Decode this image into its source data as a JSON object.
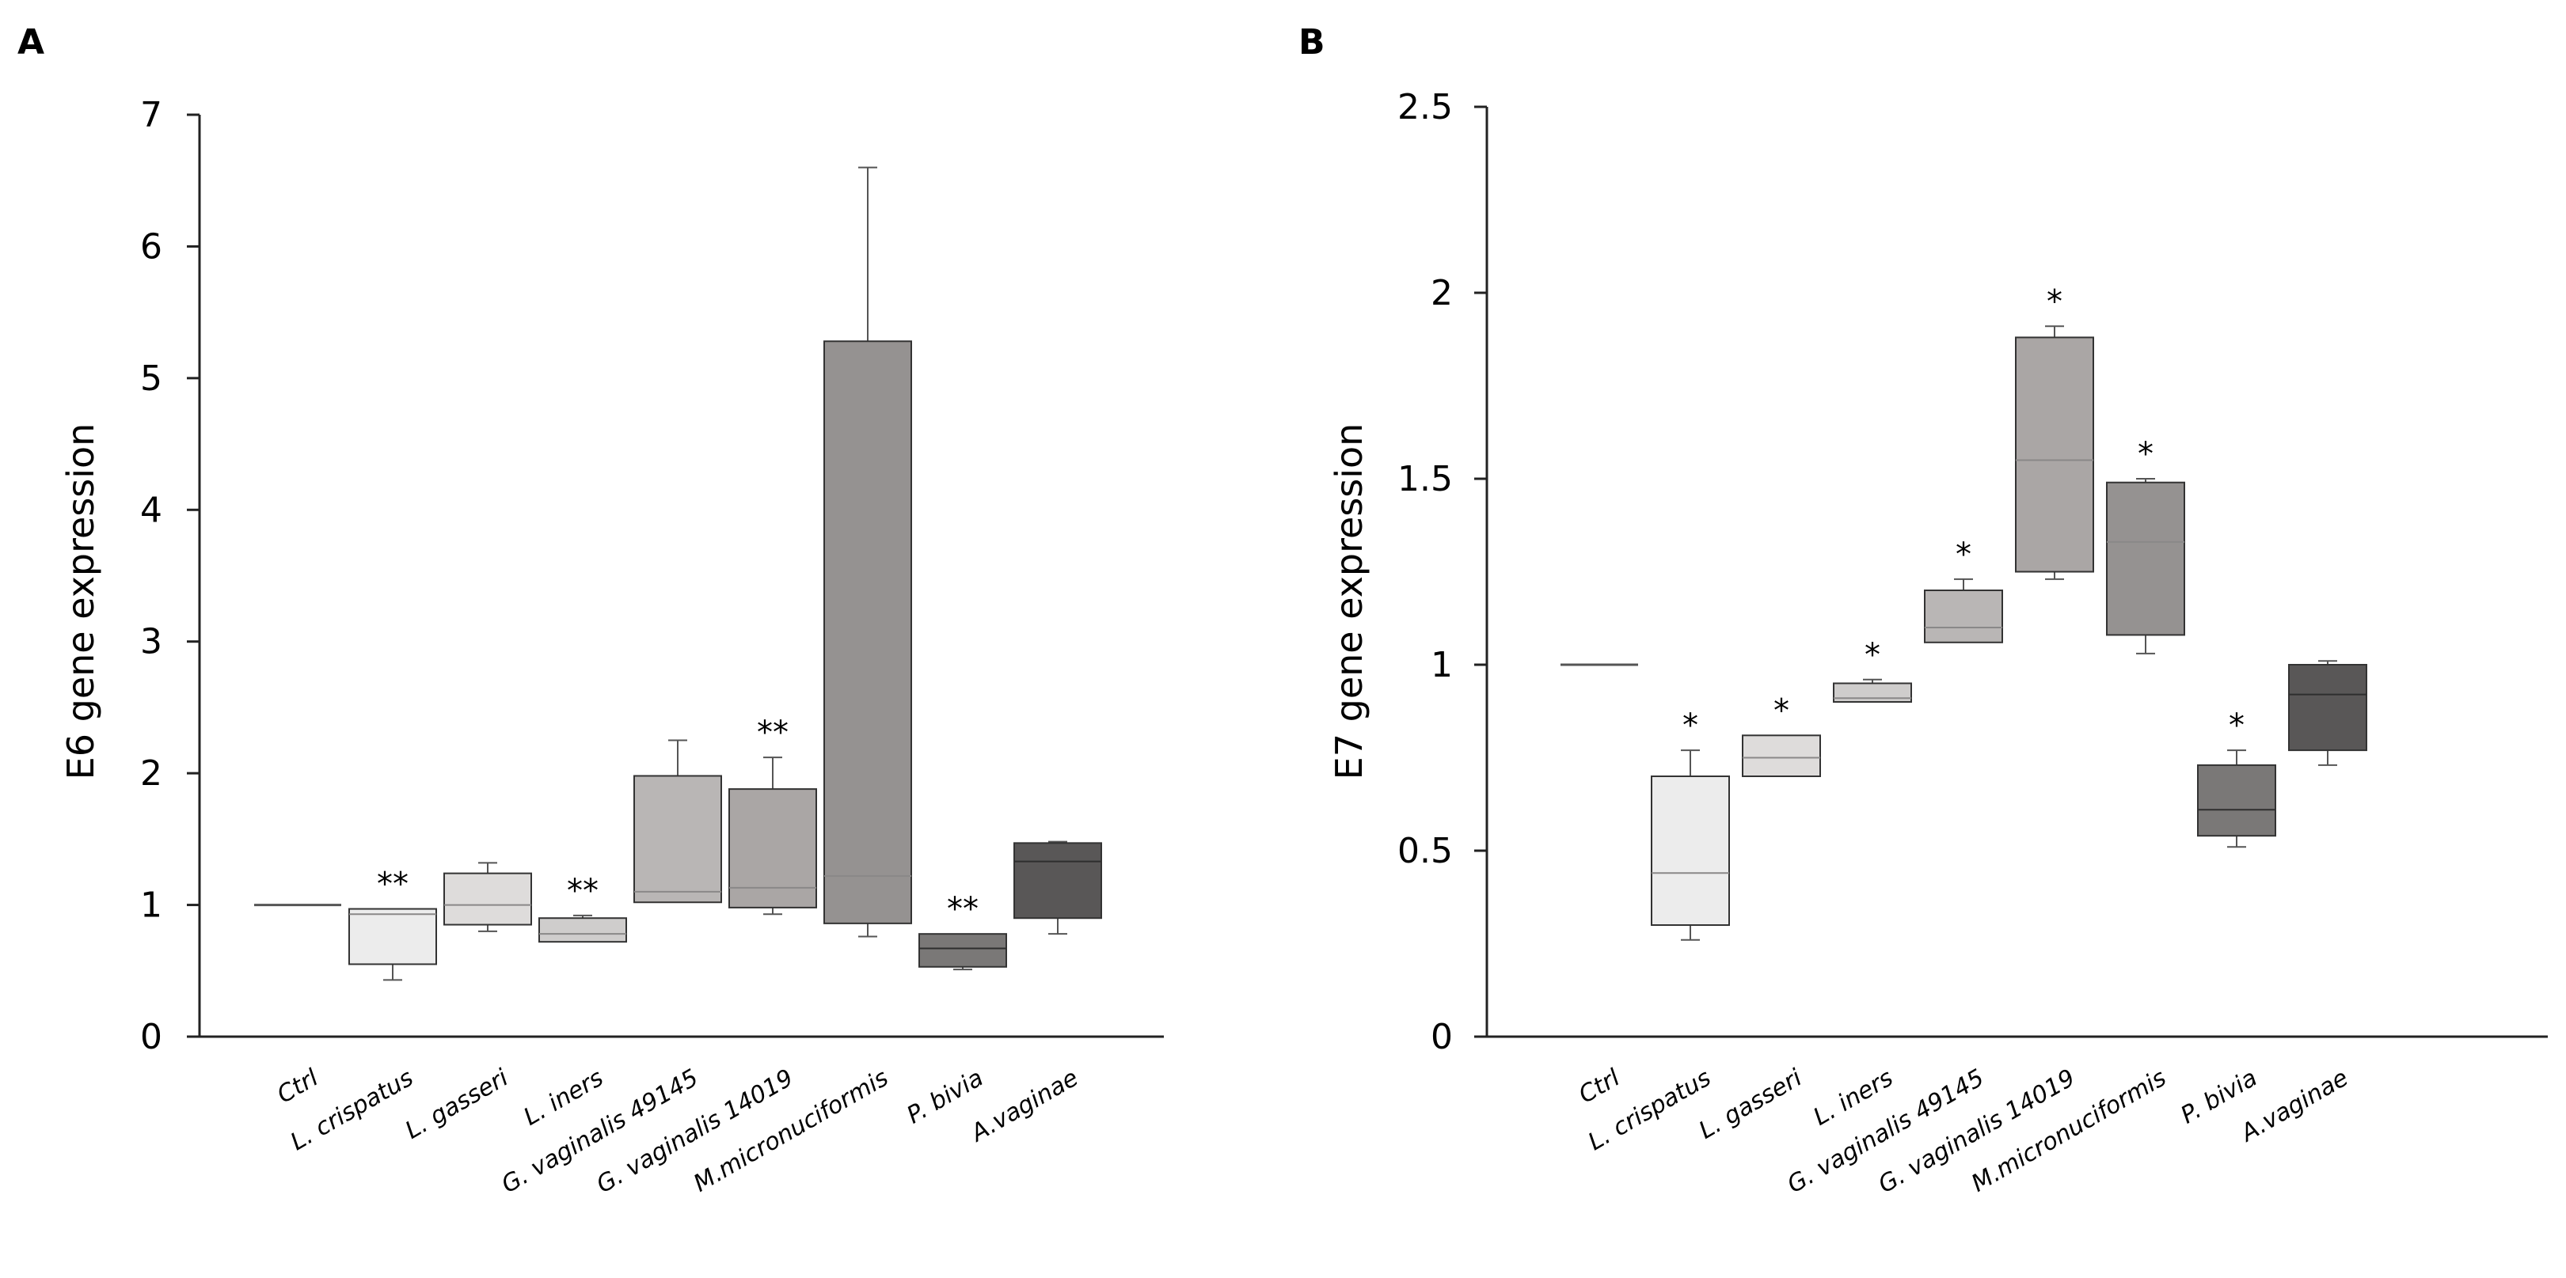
{
  "chart_data": [
    {
      "panel": "A",
      "type": "box",
      "ylabel": "E6 gene expression",
      "ylim": [
        0,
        7
      ],
      "yticks": [
        0,
        1,
        2,
        3,
        4,
        5,
        6,
        7
      ],
      "categories": [
        "Ctrl",
        "L. crispatus",
        "L. gasseri",
        "L. iners",
        "G. vaginalis 49145",
        "G. vaginalis 14019",
        "M.micronuciformis",
        "P. bivia",
        "A.vaginae"
      ],
      "boxes": [
        {
          "min": 1.0,
          "q1": 1.0,
          "median": 1.0,
          "q3": 1.0,
          "max": 1.0,
          "color": "#ffffff",
          "sig": ""
        },
        {
          "min": 0.43,
          "q1": 0.55,
          "median": 0.93,
          "q3": 0.97,
          "max": 0.97,
          "color": "#ececec",
          "sig": "**"
        },
        {
          "min": 0.8,
          "q1": 0.85,
          "median": 1.0,
          "q3": 1.24,
          "max": 1.32,
          "color": "#dedcdb",
          "sig": ""
        },
        {
          "min": 0.72,
          "q1": 0.72,
          "median": 0.78,
          "q3": 0.9,
          "max": 0.92,
          "color": "#cfcdcc",
          "sig": "**"
        },
        {
          "min": 1.02,
          "q1": 1.02,
          "median": 1.1,
          "q3": 1.98,
          "max": 2.25,
          "color": "#b9b6b5",
          "sig": ""
        },
        {
          "min": 0.93,
          "q1": 0.98,
          "median": 1.13,
          "q3": 1.88,
          "max": 2.12,
          "color": "#aaa6a5",
          "sig": "**"
        },
        {
          "min": 0.76,
          "q1": 0.86,
          "median": 1.22,
          "q3": 5.28,
          "max": 6.6,
          "color": "#959291",
          "sig": ""
        },
        {
          "min": 0.51,
          "q1": 0.53,
          "median": 0.67,
          "q3": 0.78,
          "max": 0.78,
          "color": "#7a7877",
          "sig": "**"
        },
        {
          "min": 0.78,
          "q1": 0.9,
          "median": 1.33,
          "q3": 1.47,
          "max": 1.48,
          "color": "#595757",
          "sig": ""
        }
      ]
    },
    {
      "panel": "B",
      "type": "box",
      "ylabel": "E7 gene expression",
      "ylim": [
        0,
        2.5
      ],
      "yticks": [
        0,
        0.5,
        1,
        1.5,
        2,
        2.5
      ],
      "categories": [
        "Ctrl",
        "L. crispatus",
        "L. gasseri",
        "L. iners",
        "G. vaginalis 49145",
        "G. vaginalis 14019",
        "M.micronuciformis",
        "P. bivia",
        "A.vaginae"
      ],
      "boxes": [
        {
          "min": 1.0,
          "q1": 1.0,
          "median": 1.0,
          "q3": 1.0,
          "max": 1.0,
          "color": "#ffffff",
          "sig": ""
        },
        {
          "min": 0.26,
          "q1": 0.3,
          "median": 0.44,
          "q3": 0.7,
          "max": 0.77,
          "color": "#ececec",
          "sig": "*"
        },
        {
          "min": 0.7,
          "q1": 0.7,
          "median": 0.75,
          "q3": 0.81,
          "max": 0.81,
          "color": "#dedcdb",
          "sig": "*"
        },
        {
          "min": 0.9,
          "q1": 0.9,
          "median": 0.91,
          "q3": 0.95,
          "max": 0.96,
          "color": "#cfcdcc",
          "sig": "*"
        },
        {
          "min": 1.06,
          "q1": 1.06,
          "median": 1.1,
          "q3": 1.2,
          "max": 1.23,
          "color": "#b9b6b5",
          "sig": "*"
        },
        {
          "min": 1.23,
          "q1": 1.25,
          "median": 1.55,
          "q3": 1.88,
          "max": 1.91,
          "color": "#aaa6a5",
          "sig": "*"
        },
        {
          "min": 1.03,
          "q1": 1.08,
          "median": 1.33,
          "q3": 1.49,
          "max": 1.5,
          "color": "#959291",
          "sig": "*"
        },
        {
          "min": 0.51,
          "q1": 0.54,
          "median": 0.61,
          "q3": 0.73,
          "max": 0.77,
          "color": "#7a7877",
          "sig": "*"
        },
        {
          "min": 0.73,
          "q1": 0.77,
          "median": 0.92,
          "q3": 1.0,
          "max": 1.01,
          "color": "#595757",
          "sig": ""
        }
      ]
    }
  ]
}
